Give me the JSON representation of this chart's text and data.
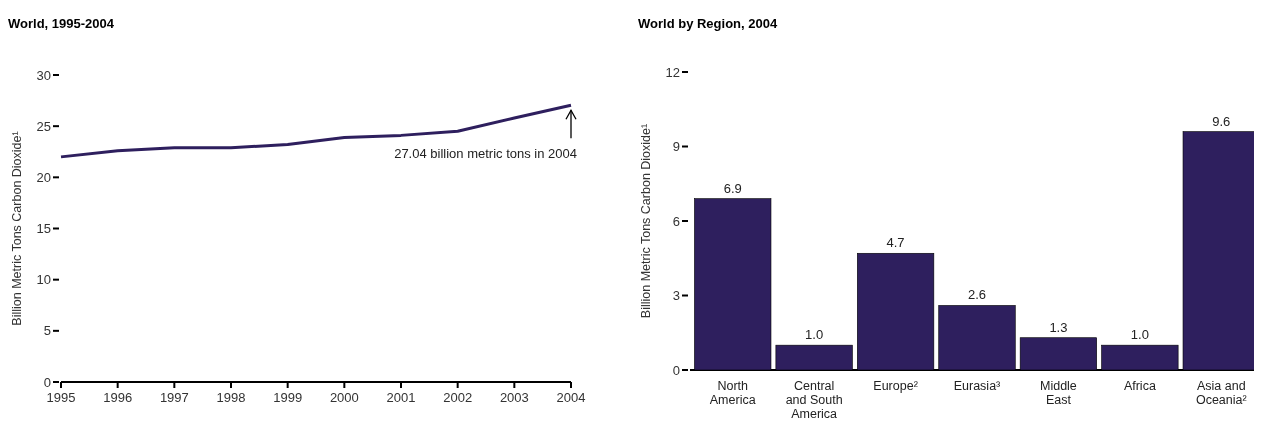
{
  "chart_data": [
    {
      "type": "line",
      "title": "World, 1995-2004",
      "ylabel": "Billion Metric Tons Carbon Dioxide¹",
      "x": [
        1995,
        1996,
        1997,
        1998,
        1999,
        2000,
        2001,
        2002,
        2003,
        2004
      ],
      "series": [
        {
          "color": "#2e1f5e",
          "values": [
            22.0,
            22.6,
            22.9,
            22.9,
            23.2,
            23.9,
            24.1,
            24.5,
            25.8,
            27.04
          ]
        }
      ],
      "xlim": [
        1995,
        2004
      ],
      "xticks": [
        1995,
        1996,
        1997,
        1998,
        1999,
        2000,
        2001,
        2002,
        2003,
        2004
      ],
      "ylim": [
        0,
        30
      ],
      "yticks": [
        0,
        5,
        10,
        15,
        20,
        25,
        30
      ],
      "annotations": [
        {
          "text": "27.04 billion metric tons in 2004",
          "x": 2004,
          "y": 27.04
        }
      ]
    },
    {
      "type": "bar",
      "title": "World by Region, 2004",
      "ylabel": "Billion Metric Tons Carbon Dioxide¹",
      "categories": [
        "North America",
        "Central and South America",
        "Europe²",
        "Eurasia³",
        "Middle East",
        "Africa",
        "Asia and Oceania²"
      ],
      "series": [
        {
          "color": "#2e1f5e",
          "values": [
            6.9,
            1.0,
            4.7,
            2.6,
            1.3,
            1.0,
            9.6
          ]
        }
      ],
      "value_labels": [
        "6.9",
        "1.0",
        "4.7",
        "2.6",
        "1.3",
        "1.0",
        "9.6"
      ],
      "ylim": [
        0,
        12
      ],
      "yticks": [
        0,
        3,
        6,
        9,
        12
      ]
    }
  ]
}
